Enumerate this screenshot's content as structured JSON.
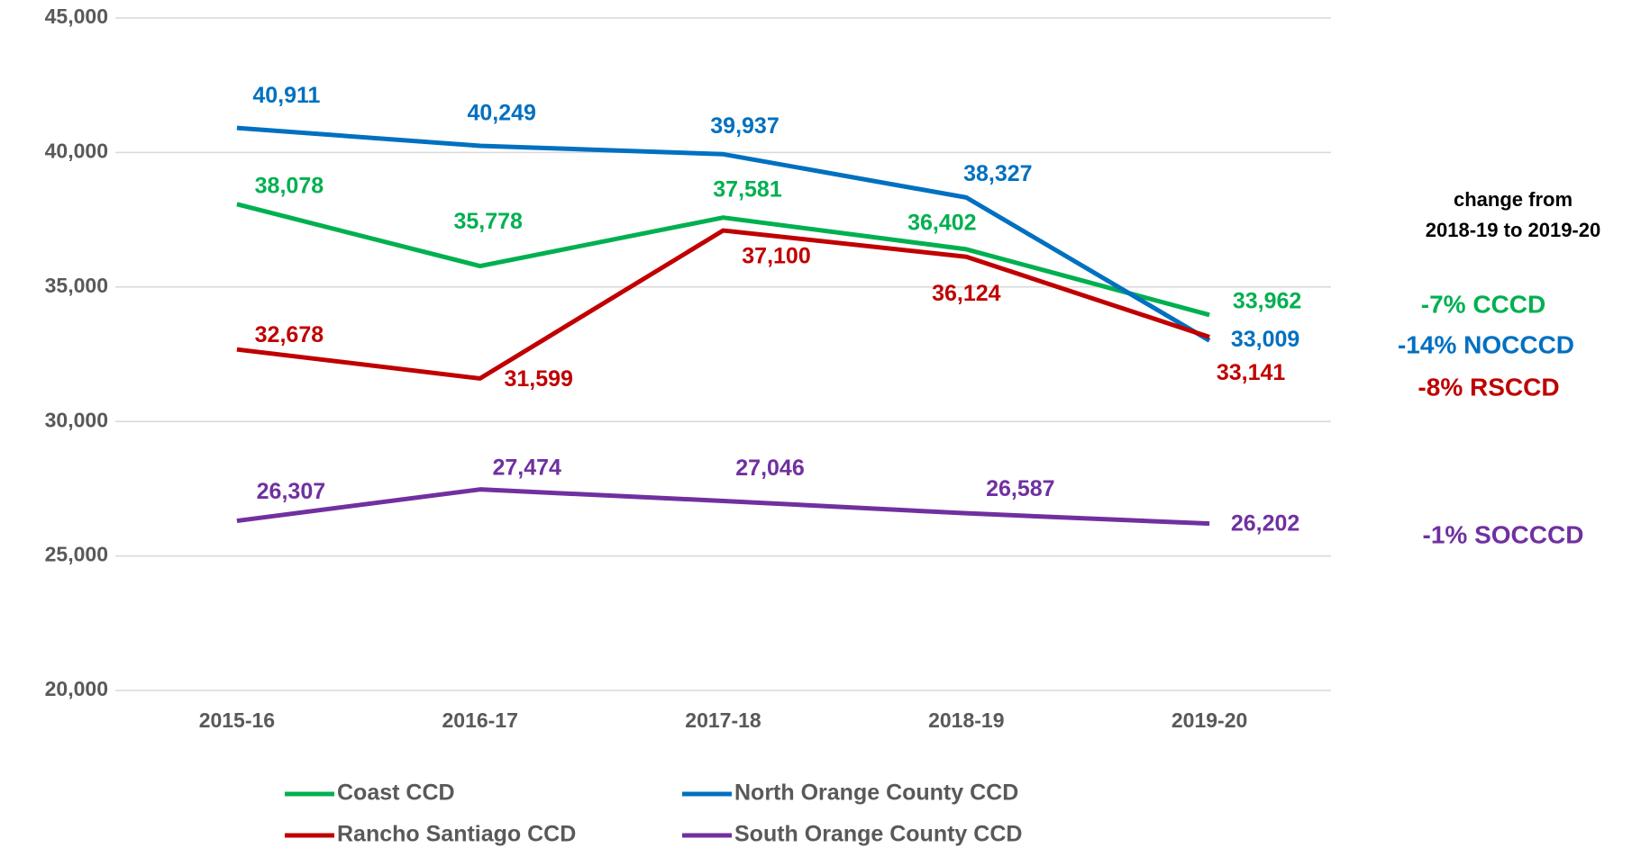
{
  "chart_data": {
    "type": "line",
    "categories": [
      "2015-16",
      "2016-17",
      "2017-18",
      "2018-19",
      "2019-20"
    ],
    "series": [
      {
        "name": "Coast CCD",
        "color": "#00b050",
        "values": [
          38078,
          35778,
          37581,
          36402,
          33962
        ],
        "value_labels": [
          "38,078",
          "35,778",
          "37,581",
          "36,402",
          "33,962"
        ]
      },
      {
        "name": "North Orange County CCD",
        "color": "#0070c0",
        "values": [
          40911,
          40249,
          39937,
          38327,
          33009
        ],
        "value_labels": [
          "40,911",
          "40,249",
          "39,937",
          "38,327",
          "33,009"
        ]
      },
      {
        "name": "Rancho Santiago CCD",
        "color": "#c00000",
        "values": [
          32678,
          31599,
          37100,
          36124,
          33141
        ],
        "value_labels": [
          "32,678",
          "31,599",
          "37,100",
          "36,124",
          "33,141"
        ]
      },
      {
        "name": "South Orange County CCD",
        "color": "#7030a0",
        "values": [
          26307,
          27474,
          27046,
          26587,
          26202
        ],
        "value_labels": [
          "26,307",
          "27,474",
          "27,046",
          "26,587",
          "26,202"
        ]
      }
    ],
    "ylim": [
      20000,
      45000
    ],
    "yticks": [
      {
        "value": 20000,
        "label": "20,000"
      },
      {
        "value": 25000,
        "label": "25,000"
      },
      {
        "value": 30000,
        "label": "30,000"
      },
      {
        "value": 35000,
        "label": "35,000"
      },
      {
        "value": 40000,
        "label": "40,000"
      },
      {
        "value": 45000,
        "label": "45,000"
      }
    ],
    "grid": true,
    "legend": "bottom",
    "annotations": [
      {
        "text": "change from",
        "color": "#000000"
      },
      {
        "text": "2018-19 to 2019-20",
        "color": "#000000"
      },
      {
        "text": "-7% CCCD",
        "color": "#00b050"
      },
      {
        "text": "-14% NOCCCD",
        "color": "#0070c0"
      },
      {
        "text": "-8% RSCCD",
        "color": "#c00000"
      },
      {
        "text": "-1% SOCCCD",
        "color": "#7030a0"
      }
    ]
  }
}
